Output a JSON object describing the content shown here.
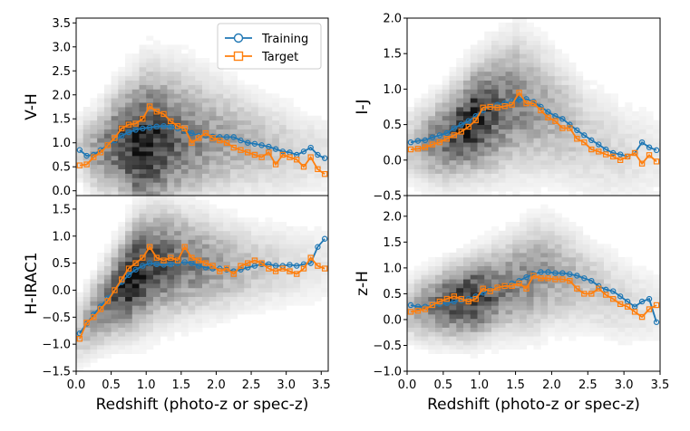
{
  "colors": {
    "training": "#1f77b4",
    "target": "#ff7f0e",
    "frame": "#000000"
  },
  "legend": {
    "training": "Training",
    "target": "Target"
  },
  "chart_data": [
    {
      "id": "vh",
      "type": "line",
      "ylabel": "V-H",
      "xlabel": "",
      "xlim": [
        0,
        3.6
      ],
      "ylim": [
        -0.1,
        3.6
      ],
      "yticks": [
        -0.0,
        0.5,
        1.0,
        1.5,
        2.0,
        2.5,
        3.0,
        3.5
      ],
      "ytick_labels": [
        "0.0",
        "0.5",
        "1.0",
        "1.5",
        "2.0",
        "2.5",
        "3.0",
        "3.5"
      ],
      "xticks": [],
      "x": [
        0.05,
        0.15,
        0.25,
        0.35,
        0.45,
        0.55,
        0.65,
        0.75,
        0.85,
        0.95,
        1.05,
        1.15,
        1.25,
        1.35,
        1.45,
        1.55,
        1.65,
        1.75,
        1.85,
        1.95,
        2.05,
        2.15,
        2.25,
        2.35,
        2.45,
        2.55,
        2.65,
        2.75,
        2.85,
        2.95,
        3.05,
        3.15,
        3.25,
        3.35,
        3.45,
        3.55
      ],
      "series": [
        {
          "name": "Training",
          "values": [
            0.85,
            0.73,
            0.75,
            0.85,
            0.95,
            1.05,
            1.15,
            1.22,
            1.27,
            1.3,
            1.32,
            1.34,
            1.35,
            1.33,
            1.3,
            1.25,
            1.2,
            1.15,
            1.15,
            1.13,
            1.12,
            1.12,
            1.12,
            1.05,
            1.0,
            0.98,
            0.95,
            0.92,
            0.87,
            0.82,
            0.8,
            0.75,
            0.82,
            0.9,
            0.75,
            0.68
          ]
        },
        {
          "name": "Target",
          "values": [
            0.53,
            0.55,
            0.7,
            0.8,
            0.95,
            1.1,
            1.3,
            1.38,
            1.4,
            1.5,
            1.76,
            1.65,
            1.6,
            1.45,
            1.35,
            1.3,
            1.0,
            1.1,
            1.2,
            1.1,
            1.05,
            1.0,
            0.9,
            0.85,
            0.8,
            0.75,
            0.7,
            0.8,
            0.55,
            0.75,
            0.7,
            0.65,
            0.5,
            0.7,
            0.45,
            0.35
          ]
        }
      ],
      "hist_center": [
        [
          0.0,
          0.9
        ],
        [
          0.3,
          0.8
        ],
        [
          0.6,
          1.0
        ],
        [
          0.9,
          0.95
        ],
        [
          1.2,
          1.05
        ],
        [
          1.5,
          1.1
        ],
        [
          1.8,
          1.1
        ],
        [
          2.2,
          1.05
        ],
        [
          2.6,
          0.95
        ],
        [
          3.0,
          0.85
        ],
        [
          3.5,
          0.75
        ]
      ],
      "hist_spread": [
        [
          0.0,
          0.4
        ],
        [
          0.5,
          0.6
        ],
        [
          1.0,
          0.85
        ],
        [
          1.5,
          0.8
        ],
        [
          2.0,
          0.7
        ],
        [
          2.5,
          0.6
        ],
        [
          3.0,
          0.55
        ],
        [
          3.5,
          0.5
        ]
      ],
      "hist_dens": [
        [
          0.0,
          0.15
        ],
        [
          0.5,
          0.6
        ],
        [
          0.9,
          1.0
        ],
        [
          1.2,
          0.8
        ],
        [
          1.6,
          0.55
        ],
        [
          2.0,
          0.4
        ],
        [
          2.5,
          0.3
        ],
        [
          3.0,
          0.2
        ],
        [
          3.5,
          0.12
        ]
      ]
    },
    {
      "id": "ij",
      "type": "line",
      "ylabel": "I-J",
      "xlabel": "",
      "xlim": [
        0,
        3.5
      ],
      "ylim": [
        -0.5,
        2.0
      ],
      "yticks": [
        -0.5,
        0.0,
        0.5,
        1.0,
        1.5,
        2.0
      ],
      "ytick_labels": [
        "−0.5",
        "0.0",
        "0.5",
        "1.0",
        "1.5",
        "2.0"
      ],
      "xticks": [],
      "x": [
        0.05,
        0.15,
        0.25,
        0.35,
        0.45,
        0.55,
        0.65,
        0.75,
        0.85,
        0.95,
        1.05,
        1.15,
        1.25,
        1.35,
        1.45,
        1.55,
        1.65,
        1.75,
        1.85,
        1.95,
        2.05,
        2.15,
        2.25,
        2.35,
        2.45,
        2.55,
        2.65,
        2.75,
        2.85,
        2.95,
        3.05,
        3.15,
        3.25,
        3.35,
        3.45
      ],
      "series": [
        {
          "name": "Training",
          "values": [
            0.25,
            0.27,
            0.28,
            0.32,
            0.35,
            0.38,
            0.45,
            0.5,
            0.55,
            0.62,
            0.7,
            0.75,
            0.78,
            0.8,
            0.83,
            0.85,
            0.86,
            0.82,
            0.75,
            0.68,
            0.62,
            0.58,
            0.5,
            0.42,
            0.35,
            0.28,
            0.22,
            0.15,
            0.1,
            0.08,
            0.05,
            0.1,
            0.25,
            0.18,
            0.14
          ]
        },
        {
          "name": "Target",
          "values": [
            0.15,
            0.16,
            0.18,
            0.22,
            0.25,
            0.3,
            0.35,
            0.4,
            0.47,
            0.56,
            0.74,
            0.75,
            0.74,
            0.76,
            0.78,
            0.95,
            0.8,
            0.8,
            0.7,
            0.6,
            0.55,
            0.45,
            0.45,
            0.3,
            0.25,
            0.15,
            0.12,
            0.08,
            0.05,
            0.0,
            0.05,
            0.1,
            -0.05,
            0.07,
            -0.02
          ]
        }
      ],
      "hist_center": [
        [
          0.0,
          0.2
        ],
        [
          0.5,
          0.3
        ],
        [
          1.0,
          0.6
        ],
        [
          1.5,
          0.8
        ],
        [
          2.0,
          0.65
        ],
        [
          2.5,
          0.3
        ],
        [
          3.0,
          0.1
        ],
        [
          3.5,
          0.05
        ]
      ],
      "hist_spread": [
        [
          0.0,
          0.3
        ],
        [
          0.8,
          0.4
        ],
        [
          1.5,
          0.55
        ],
        [
          2.5,
          0.45
        ],
        [
          3.5,
          0.4
        ]
      ],
      "hist_dens": [
        [
          0.0,
          0.2
        ],
        [
          0.5,
          0.6
        ],
        [
          0.9,
          0.95
        ],
        [
          1.3,
          0.6
        ],
        [
          1.8,
          0.4
        ],
        [
          2.5,
          0.2
        ],
        [
          3.5,
          0.08
        ]
      ]
    },
    {
      "id": "hirac1",
      "type": "line",
      "ylabel": "H-IRAC1",
      "xlabel": "Redshift (photo-z or spec-z)",
      "xlim": [
        0,
        3.6
      ],
      "ylim": [
        -1.5,
        1.75
      ],
      "yticks": [
        -1.5,
        -1.0,
        -0.5,
        0.0,
        0.5,
        1.0,
        1.5
      ],
      "ytick_labels": [
        "−1.5",
        "−1.0",
        "−0.5",
        "0.0",
        "0.5",
        "1.0",
        "1.5"
      ],
      "xticks": [
        0.0,
        0.5,
        1.0,
        1.5,
        2.0,
        2.5,
        3.0,
        3.5
      ],
      "xtick_labels": [
        "0.0",
        "0.5",
        "1.0",
        "1.5",
        "2.0",
        "2.5",
        "3.0",
        "3.5"
      ],
      "x": [
        0.05,
        0.15,
        0.25,
        0.35,
        0.45,
        0.55,
        0.65,
        0.75,
        0.85,
        0.95,
        1.05,
        1.15,
        1.25,
        1.35,
        1.45,
        1.55,
        1.65,
        1.75,
        1.85,
        1.95,
        2.05,
        2.15,
        2.25,
        2.35,
        2.45,
        2.55,
        2.65,
        2.75,
        2.85,
        2.95,
        3.05,
        3.15,
        3.25,
        3.35,
        3.45,
        3.55
      ],
      "series": [
        {
          "name": "Training",
          "values": [
            -0.8,
            -0.62,
            -0.45,
            -0.3,
            -0.15,
            0.0,
            0.15,
            0.28,
            0.38,
            0.45,
            0.5,
            0.48,
            0.47,
            0.48,
            0.5,
            0.52,
            0.5,
            0.45,
            0.42,
            0.4,
            0.4,
            0.38,
            0.35,
            0.38,
            0.42,
            0.45,
            0.48,
            0.48,
            0.45,
            0.45,
            0.47,
            0.45,
            0.48,
            0.5,
            0.8,
            0.95
          ]
        },
        {
          "name": "Target",
          "values": [
            -0.9,
            -0.6,
            -0.5,
            -0.35,
            -0.2,
            0.0,
            0.2,
            0.4,
            0.5,
            0.6,
            0.8,
            0.6,
            0.55,
            0.6,
            0.55,
            0.8,
            0.6,
            0.55,
            0.5,
            0.45,
            0.35,
            0.4,
            0.3,
            0.45,
            0.5,
            0.55,
            0.5,
            0.4,
            0.35,
            0.4,
            0.35,
            0.3,
            0.4,
            0.6,
            0.45,
            0.4
          ]
        }
      ],
      "hist_center": [
        [
          0.0,
          -0.8
        ],
        [
          0.3,
          -0.4
        ],
        [
          0.6,
          0.0
        ],
        [
          0.9,
          0.35
        ],
        [
          1.2,
          0.5
        ],
        [
          1.6,
          0.5
        ],
        [
          2.0,
          0.45
        ],
        [
          2.5,
          0.45
        ],
        [
          3.0,
          0.45
        ],
        [
          3.5,
          0.5
        ]
      ],
      "hist_spread": [
        [
          0.0,
          0.35
        ],
        [
          0.5,
          0.45
        ],
        [
          1.0,
          0.6
        ],
        [
          1.6,
          0.55
        ],
        [
          2.5,
          0.45
        ],
        [
          3.5,
          0.45
        ]
      ],
      "hist_dens": [
        [
          0.0,
          0.2
        ],
        [
          0.4,
          0.55
        ],
        [
          0.8,
          1.0
        ],
        [
          1.1,
          0.75
        ],
        [
          1.6,
          0.55
        ],
        [
          2.0,
          0.4
        ],
        [
          2.5,
          0.25
        ],
        [
          3.0,
          0.15
        ],
        [
          3.5,
          0.1
        ]
      ]
    },
    {
      "id": "zh",
      "type": "line",
      "ylabel": "z-H",
      "xlabel": "Redshift (photo-z or spec-z)",
      "xlim": [
        0,
        3.5
      ],
      "ylim": [
        -1.0,
        2.4
      ],
      "yticks": [
        -1.0,
        -0.5,
        0.0,
        0.5,
        1.0,
        1.5,
        2.0
      ],
      "ytick_labels": [
        "−1.0",
        "−0.5",
        "0.0",
        "0.5",
        "1.0",
        "1.5",
        "2.0"
      ],
      "xticks": [
        0.0,
        0.5,
        1.0,
        1.5,
        2.0,
        2.5,
        3.0,
        3.5
      ],
      "xtick_labels": [
        "0.0",
        "0.5",
        "1.0",
        "1.5",
        "2.0",
        "2.5",
        "3.0",
        "3.5"
      ],
      "x": [
        0.05,
        0.15,
        0.25,
        0.35,
        0.45,
        0.55,
        0.65,
        0.75,
        0.85,
        0.95,
        1.05,
        1.15,
        1.25,
        1.35,
        1.45,
        1.55,
        1.65,
        1.75,
        1.85,
        1.95,
        2.05,
        2.15,
        2.25,
        2.35,
        2.45,
        2.55,
        2.65,
        2.75,
        2.85,
        2.95,
        3.05,
        3.15,
        3.25,
        3.35,
        3.45
      ],
      "series": [
        {
          "name": "Training",
          "values": [
            0.28,
            0.25,
            0.25,
            0.27,
            0.3,
            0.32,
            0.35,
            0.37,
            0.4,
            0.45,
            0.52,
            0.58,
            0.62,
            0.65,
            0.7,
            0.75,
            0.82,
            0.88,
            0.92,
            0.92,
            0.9,
            0.9,
            0.88,
            0.85,
            0.8,
            0.75,
            0.65,
            0.58,
            0.55,
            0.45,
            0.35,
            0.25,
            0.35,
            0.4,
            -0.05
          ]
        },
        {
          "name": "Target",
          "values": [
            0.15,
            0.17,
            0.2,
            0.28,
            0.35,
            0.4,
            0.45,
            0.4,
            0.35,
            0.4,
            0.6,
            0.55,
            0.62,
            0.65,
            0.65,
            0.7,
            0.6,
            0.85,
            0.8,
            0.8,
            0.78,
            0.78,
            0.75,
            0.6,
            0.5,
            0.5,
            0.6,
            0.48,
            0.4,
            0.3,
            0.25,
            0.15,
            0.05,
            0.2,
            0.28
          ]
        }
      ],
      "hist_center": [
        [
          0.0,
          0.2
        ],
        [
          0.5,
          0.3
        ],
        [
          1.0,
          0.45
        ],
        [
          1.5,
          0.7
        ],
        [
          2.0,
          0.9
        ],
        [
          2.5,
          0.7
        ],
        [
          3.0,
          0.35
        ],
        [
          3.5,
          0.2
        ]
      ],
      "hist_spread": [
        [
          0.0,
          0.35
        ],
        [
          1.0,
          0.45
        ],
        [
          1.8,
          0.6
        ],
        [
          2.5,
          0.5
        ],
        [
          3.5,
          0.45
        ]
      ],
      "hist_dens": [
        [
          0.0,
          0.25
        ],
        [
          0.5,
          0.7
        ],
        [
          0.9,
          0.9
        ],
        [
          1.3,
          0.55
        ],
        [
          1.8,
          0.45
        ],
        [
          2.5,
          0.25
        ],
        [
          3.5,
          0.08
        ]
      ]
    }
  ]
}
